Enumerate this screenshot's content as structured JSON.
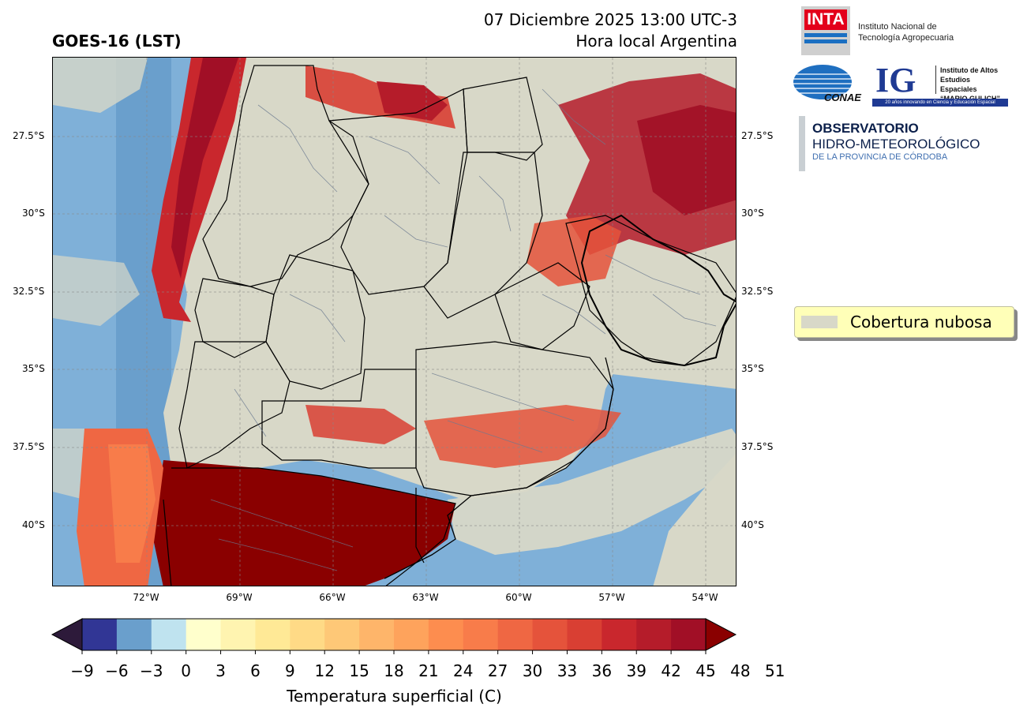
{
  "header": {
    "title": "GOES-16 (LST)",
    "date_line": "07 Diciembre 2025 13:00 UTC-3",
    "local_line": "Hora local Argentina"
  },
  "map": {
    "lat_ticks_left": [
      "27.5°S",
      "30°S",
      "32.5°S",
      "35°S",
      "37.5°S",
      "40°S"
    ],
    "lat_ticks_right": [
      "27.5°S",
      "30°S",
      "32.5°S",
      "35°S",
      "37.5°S",
      "40°S"
    ],
    "lon_ticks": [
      "72°W",
      "69°W",
      "66°W",
      "63°W",
      "60°W",
      "57°W",
      "54°W"
    ],
    "lon_range": [
      -75,
      -53
    ],
    "lat_range": [
      -42,
      -25
    ]
  },
  "legend": {
    "cloud_label": "Cobertura nubosa",
    "cloud_color": "#d8d8c8"
  },
  "colorbar": {
    "title": "Temperatura superficial (C)",
    "ticks": [
      "−9",
      "−6",
      "−3",
      "0",
      "3",
      "6",
      "9",
      "12",
      "15",
      "18",
      "21",
      "24",
      "27",
      "30",
      "33",
      "36",
      "39",
      "42",
      "45",
      "48",
      "51"
    ],
    "colors": [
      "#313695",
      "#6a9fcc",
      "#bfe3ef",
      "#ffffcc",
      "#fff4b0",
      "#ffe996",
      "#ffda86",
      "#fec877",
      "#feb56a",
      "#fea35c",
      "#fd8d4f",
      "#f87c4a",
      "#ef6743",
      "#e5533b",
      "#d93f33",
      "#c9272d",
      "#b51c2a",
      "#a10f26"
    ],
    "under_color": "#2d1a3a",
    "over_color": "#8a0000"
  },
  "logos": {
    "inta": {
      "mark": "INTA",
      "line1": "Instituto Nacional de",
      "line2": "Tecnología Agropecuaria"
    },
    "conae": {
      "mark": "CONAE"
    },
    "ig": {
      "mark": "IG",
      "line1": "Instituto de Altos",
      "line2": "Estudios Espaciales",
      "line3": "“MARIO GULICH”",
      "tagline": "20 años innovando en Ciencia y Educación Espacial"
    },
    "observatorio": {
      "line1": "OBSERVATORIO",
      "line2": "HIDRO-METEOROLÓGICO",
      "line3": "DE LA PROVINCIA DE CÓRDOBA"
    }
  }
}
